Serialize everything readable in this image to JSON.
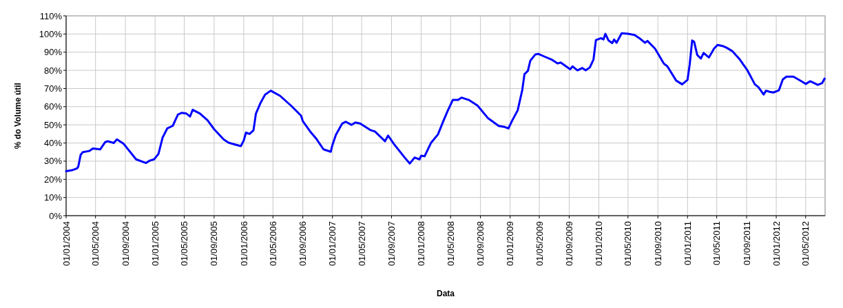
{
  "chart_data": {
    "type": "line",
    "xlabel": "Data",
    "ylabel": "% do Volume útil",
    "grid": true,
    "marker": "none",
    "line_style": "solid",
    "xlim": [
      "2004-01-01",
      "2012-07-20"
    ],
    "xticks": [
      {
        "value": "2004-01-01",
        "label": "01/01/2004"
      },
      {
        "value": "2004-05-01",
        "label": "01/05/2004"
      },
      {
        "value": "2004-09-01",
        "label": "01/09/2004"
      },
      {
        "value": "2005-01-01",
        "label": "01/01/2005"
      },
      {
        "value": "2005-05-01",
        "label": "01/05/2005"
      },
      {
        "value": "2005-09-01",
        "label": "01/09/2005"
      },
      {
        "value": "2006-01-01",
        "label": "01/01/2006"
      },
      {
        "value": "2006-05-01",
        "label": "01/05/2006"
      },
      {
        "value": "2006-09-01",
        "label": "01/09/2006"
      },
      {
        "value": "2007-01-01",
        "label": "01/01/2007"
      },
      {
        "value": "2007-05-01",
        "label": "01/05/2007"
      },
      {
        "value": "2007-09-01",
        "label": "01/09/2007"
      },
      {
        "value": "2008-01-01",
        "label": "01/01/2008"
      },
      {
        "value": "2008-05-01",
        "label": "01/05/2008"
      },
      {
        "value": "2008-09-01",
        "label": "01/09/2008"
      },
      {
        "value": "2009-01-01",
        "label": "01/01/2009"
      },
      {
        "value": "2009-05-01",
        "label": "01/05/2009"
      },
      {
        "value": "2009-09-01",
        "label": "01/09/2009"
      },
      {
        "value": "2010-01-01",
        "label": "01/01/2010"
      },
      {
        "value": "2010-05-01",
        "label": "01/05/2010"
      },
      {
        "value": "2010-09-01",
        "label": "01/09/2010"
      },
      {
        "value": "2011-01-01",
        "label": "01/01/2011"
      },
      {
        "value": "2011-05-01",
        "label": "01/05/2011"
      },
      {
        "value": "2011-09-01",
        "label": "01/09/2011"
      },
      {
        "value": "2012-01-01",
        "label": "01/01/2012"
      },
      {
        "value": "2012-05-01",
        "label": "01/05/2012"
      }
    ],
    "ylim": [
      0,
      110
    ],
    "yticks": [
      {
        "value": 0,
        "label": "0%"
      },
      {
        "value": 10,
        "label": "10%"
      },
      {
        "value": 20,
        "label": "20%"
      },
      {
        "value": 30,
        "label": "30%"
      },
      {
        "value": 40,
        "label": "40%"
      },
      {
        "value": 50,
        "label": "50%"
      },
      {
        "value": 60,
        "label": "60%"
      },
      {
        "value": 70,
        "label": "70%"
      },
      {
        "value": 80,
        "label": "80%"
      },
      {
        "value": 90,
        "label": "90%"
      },
      {
        "value": 100,
        "label": "100%"
      },
      {
        "value": 110,
        "label": "110%"
      }
    ],
    "x": [
      "2004-01-01",
      "2004-01-25",
      "2004-02-15",
      "2004-02-20",
      "2004-03-01",
      "2004-03-10",
      "2004-04-05",
      "2004-04-20",
      "2004-05-20",
      "2004-06-10",
      "2004-06-20",
      "2004-07-15",
      "2004-07-28",
      "2004-08-25",
      "2004-10-15",
      "2004-11-25",
      "2004-12-10",
      "2004-12-28",
      "2005-01-15",
      "2005-02-01",
      "2005-02-20",
      "2005-03-15",
      "2005-04-05",
      "2005-04-20",
      "2005-05-10",
      "2005-05-25",
      "2005-06-05",
      "2005-07-05",
      "2005-08-05",
      "2005-09-01",
      "2005-10-10",
      "2005-10-30",
      "2005-12-01",
      "2005-12-20",
      "2006-01-01",
      "2006-01-10",
      "2006-01-25",
      "2006-02-10",
      "2006-02-20",
      "2006-03-10",
      "2006-03-30",
      "2006-04-22",
      "2006-05-30",
      "2006-07-15",
      "2006-08-25",
      "2006-09-01",
      "2006-10-05",
      "2006-10-25",
      "2006-11-25",
      "2006-12-25",
      "2007-01-01",
      "2007-01-15",
      "2007-02-10",
      "2007-02-25",
      "2007-03-20",
      "2007-04-05",
      "2007-04-25",
      "2007-06-05",
      "2007-06-25",
      "2007-08-05",
      "2007-08-18",
      "2007-09-10",
      "2007-10-25",
      "2007-11-15",
      "2007-12-05",
      "2007-12-25",
      "2008-01-01",
      "2008-01-15",
      "2008-02-10",
      "2008-03-10",
      "2008-04-01",
      "2008-04-20",
      "2008-05-10",
      "2008-06-01",
      "2008-06-15",
      "2008-07-15",
      "2008-08-20",
      "2008-10-01",
      "2008-11-15",
      "2008-12-10",
      "2008-12-25",
      "2009-01-10",
      "2009-02-01",
      "2009-02-20",
      "2009-03-01",
      "2009-03-15",
      "2009-03-25",
      "2009-04-15",
      "2009-04-28",
      "2009-05-15",
      "2009-06-20",
      "2009-07-15",
      "2009-07-28",
      "2009-09-05",
      "2009-09-15",
      "2009-10-05",
      "2009-10-25",
      "2009-11-08",
      "2009-11-25",
      "2009-12-10",
      "2009-12-20",
      "2010-01-10",
      "2010-01-20",
      "2010-01-28",
      "2010-02-10",
      "2010-02-25",
      "2010-03-05",
      "2010-03-15",
      "2010-04-05",
      "2010-05-01",
      "2010-05-28",
      "2010-06-15",
      "2010-07-10",
      "2010-07-20",
      "2010-08-20",
      "2010-09-25",
      "2010-10-10",
      "2010-11-15",
      "2010-12-10",
      "2011-01-01",
      "2011-01-10",
      "2011-01-20",
      "2011-01-28",
      "2011-02-10",
      "2011-02-25",
      "2011-03-08",
      "2011-03-30",
      "2011-04-20",
      "2011-05-05",
      "2011-05-28",
      "2011-06-10",
      "2011-07-05",
      "2011-08-01",
      "2011-09-03",
      "2011-10-05",
      "2011-10-20",
      "2011-11-10",
      "2011-11-20",
      "2011-12-05",
      "2011-12-20",
      "2012-01-12",
      "2012-01-28",
      "2012-02-12",
      "2012-03-12",
      "2012-04-20",
      "2012-05-01",
      "2012-05-20",
      "2012-06-20",
      "2012-07-08",
      "2012-07-18"
    ],
    "series": [
      {
        "color": "#0000ff",
        "values": [
          24.5,
          25,
          26,
          27,
          33.6,
          35,
          35.6,
          37,
          36.5,
          40.5,
          41,
          40,
          42,
          39.5,
          31,
          29,
          30.3,
          31,
          34,
          43,
          48,
          49.5,
          55.6,
          56.6,
          56.2,
          54.6,
          58.3,
          56.2,
          52.5,
          47.6,
          42,
          40.2,
          39,
          38.3,
          41.4,
          45.7,
          45,
          47,
          56.2,
          61.8,
          66.7,
          68.8,
          66,
          60.5,
          55,
          52,
          45.7,
          42.6,
          36.5,
          35.2,
          39,
          44.5,
          50.7,
          51.7,
          50,
          51.3,
          50.7,
          47.2,
          46.3,
          41,
          44.1,
          39.6,
          32,
          28.7,
          32,
          31,
          33,
          32.7,
          40,
          44.7,
          52,
          58,
          63.7,
          63.7,
          65,
          63.7,
          60.6,
          53.8,
          49.4,
          48.8,
          48,
          52.5,
          58,
          69.2,
          77.9,
          79.7,
          85.3,
          88.8,
          89,
          88,
          86,
          83.8,
          84.3,
          80.6,
          82.2,
          80,
          81.3,
          80,
          81.6,
          86,
          96.7,
          97.7,
          97,
          100.1,
          96.4,
          95,
          97,
          95.2,
          100.4,
          100.1,
          99.5,
          97.9,
          95.2,
          96.2,
          92,
          83.8,
          82.2,
          74.4,
          72.3,
          74.8,
          83.4,
          96.4,
          95.8,
          88.4,
          86.5,
          89.6,
          87.1,
          92,
          94,
          93.3,
          92.5,
          90.5,
          86.5,
          80.3,
          72.3,
          70.7,
          66.7,
          68.8,
          68.2,
          67.8,
          69,
          75,
          76.5,
          76.5,
          73.5,
          72.5,
          74,
          72,
          73,
          75.5
        ]
      }
    ]
  }
}
